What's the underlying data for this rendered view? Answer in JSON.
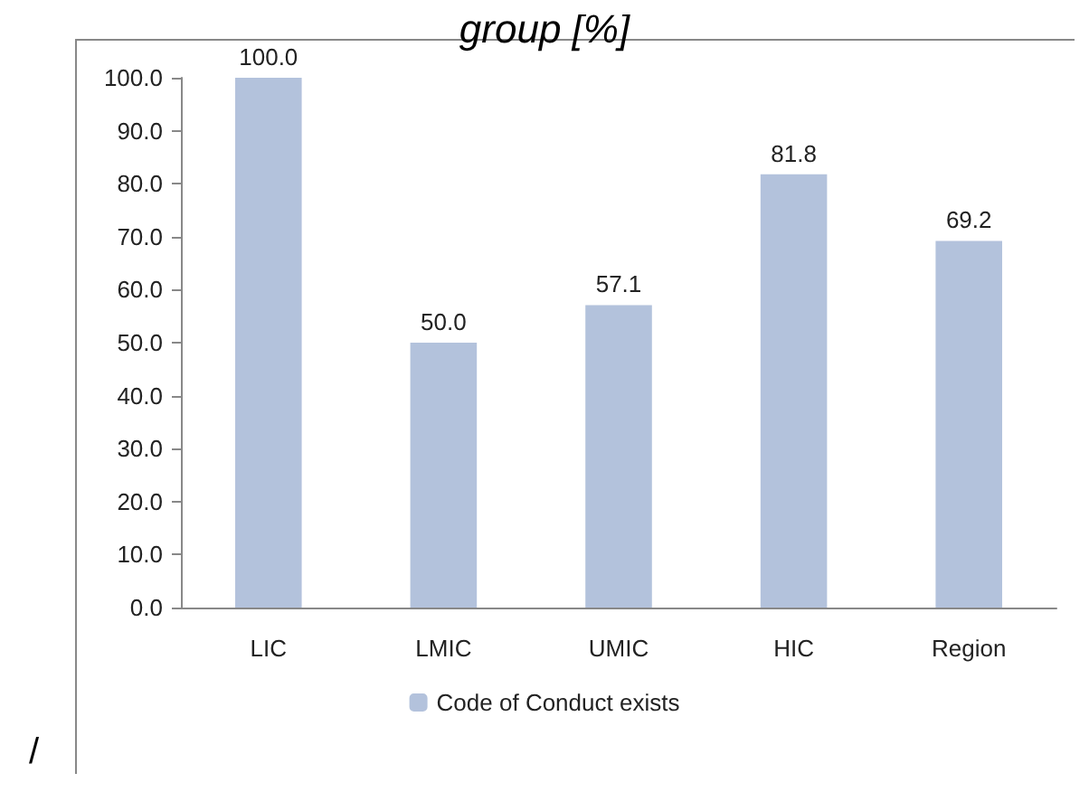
{
  "chart_data": {
    "type": "bar",
    "title": "group [%]",
    "categories": [
      "LIC",
      "LMIC",
      "UMIC",
      "HIC",
      "Region"
    ],
    "series": [
      {
        "name": "Code of Conduct exists",
        "color": "#b3c2dc",
        "values": [
          100.0,
          50.0,
          57.1,
          81.8,
          69.2
        ],
        "value_labels": [
          "100.0",
          "50.0",
          "57.1",
          "81.8",
          "69.2"
        ]
      }
    ],
    "ylim": [
      0,
      100
    ],
    "yticks": [
      {
        "value": 0,
        "label": "0.0"
      },
      {
        "value": 10,
        "label": "10.0"
      },
      {
        "value": 20,
        "label": "20.0"
      },
      {
        "value": 30,
        "label": "30.0"
      },
      {
        "value": 40,
        "label": "40.0"
      },
      {
        "value": 50,
        "label": "50.0"
      },
      {
        "value": 60,
        "label": "60.0"
      },
      {
        "value": 70,
        "label": "70.0"
      },
      {
        "value": 80,
        "label": "80.0"
      },
      {
        "value": 90,
        "label": "90.0"
      },
      {
        "value": 100,
        "label": "100.0"
      }
    ],
    "grid": false,
    "legend": "bottom",
    "annotations": [
      "/"
    ]
  }
}
